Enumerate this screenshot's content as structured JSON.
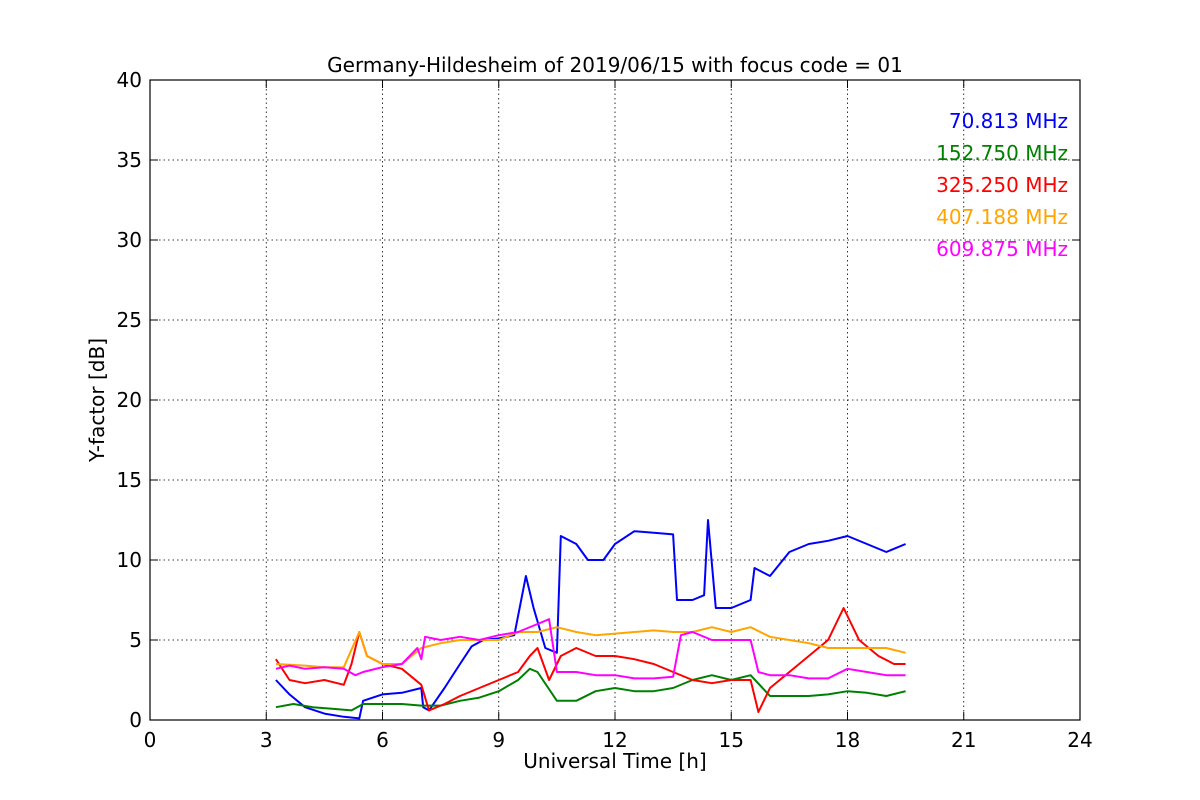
{
  "chart_data": {
    "type": "line",
    "title": "Germany-Hildesheim of 2019/06/15 with focus code = 01",
    "xlabel": "Universal Time [h]",
    "ylabel": "Y-factor [dB]",
    "xlim": [
      0,
      24
    ],
    "ylim": [
      0,
      40
    ],
    "x_ticks": [
      "0",
      "3",
      "6",
      "9",
      "12",
      "15",
      "18",
      "21",
      "24"
    ],
    "y_ticks": [
      "0",
      "5",
      "10",
      "15",
      "20",
      "25",
      "30",
      "35",
      "40"
    ],
    "grid": true,
    "legend_position": "top-right",
    "series": [
      {
        "name": "70.813 MHz",
        "color": "#0000ff",
        "points": [
          [
            3.25,
            2.5
          ],
          [
            3.6,
            1.6
          ],
          [
            4.0,
            0.8
          ],
          [
            4.5,
            0.4
          ],
          [
            5.0,
            0.2
          ],
          [
            5.4,
            0.1
          ],
          [
            5.5,
            1.2
          ],
          [
            6.0,
            1.6
          ],
          [
            6.5,
            1.7
          ],
          [
            7.0,
            2.0
          ],
          [
            7.05,
            0.8
          ],
          [
            7.2,
            0.6
          ],
          [
            7.6,
            2.0
          ],
          [
            8.0,
            3.5
          ],
          [
            8.3,
            4.6
          ],
          [
            8.6,
            5.0
          ],
          [
            9.0,
            5.1
          ],
          [
            9.4,
            5.3
          ],
          [
            9.7,
            9.0
          ],
          [
            9.9,
            7.0
          ],
          [
            10.2,
            4.5
          ],
          [
            10.5,
            4.2
          ],
          [
            10.6,
            11.5
          ],
          [
            11.0,
            11.0
          ],
          [
            11.3,
            10.0
          ],
          [
            11.7,
            10.0
          ],
          [
            12.0,
            11.0
          ],
          [
            12.5,
            11.8
          ],
          [
            13.0,
            11.7
          ],
          [
            13.5,
            11.6
          ],
          [
            13.6,
            7.5
          ],
          [
            14.0,
            7.5
          ],
          [
            14.3,
            7.8
          ],
          [
            14.4,
            12.5
          ],
          [
            14.6,
            7.0
          ],
          [
            15.0,
            7.0
          ],
          [
            15.5,
            7.5
          ],
          [
            15.6,
            9.5
          ],
          [
            16.0,
            9.0
          ],
          [
            16.5,
            10.5
          ],
          [
            17.0,
            11.0
          ],
          [
            17.5,
            11.2
          ],
          [
            18.0,
            11.5
          ],
          [
            18.5,
            11.0
          ],
          [
            19.0,
            10.5
          ],
          [
            19.5,
            11.0
          ]
        ]
      },
      {
        "name": "152.750 MHz",
        "color": "#008000",
        "points": [
          [
            3.25,
            0.8
          ],
          [
            3.7,
            1.0
          ],
          [
            4.2,
            0.8
          ],
          [
            4.7,
            0.7
          ],
          [
            5.2,
            0.6
          ],
          [
            5.5,
            1.0
          ],
          [
            6.0,
            1.0
          ],
          [
            6.5,
            1.0
          ],
          [
            7.0,
            0.9
          ],
          [
            7.5,
            0.9
          ],
          [
            8.0,
            1.2
          ],
          [
            8.5,
            1.4
          ],
          [
            9.0,
            1.8
          ],
          [
            9.5,
            2.5
          ],
          [
            9.8,
            3.2
          ],
          [
            10.0,
            3.0
          ],
          [
            10.5,
            1.2
          ],
          [
            11.0,
            1.2
          ],
          [
            11.5,
            1.8
          ],
          [
            12.0,
            2.0
          ],
          [
            12.5,
            1.8
          ],
          [
            13.0,
            1.8
          ],
          [
            13.5,
            2.0
          ],
          [
            14.0,
            2.5
          ],
          [
            14.5,
            2.8
          ],
          [
            15.0,
            2.5
          ],
          [
            15.5,
            2.8
          ],
          [
            16.0,
            1.5
          ],
          [
            16.5,
            1.5
          ],
          [
            17.0,
            1.5
          ],
          [
            17.5,
            1.6
          ],
          [
            18.0,
            1.8
          ],
          [
            18.5,
            1.7
          ],
          [
            19.0,
            1.5
          ],
          [
            19.5,
            1.8
          ]
        ]
      },
      {
        "name": "325.250 MHz",
        "color": "#ff0000",
        "points": [
          [
            3.25,
            3.8
          ],
          [
            3.6,
            2.5
          ],
          [
            4.0,
            2.3
          ],
          [
            4.5,
            2.5
          ],
          [
            5.0,
            2.2
          ],
          [
            5.2,
            3.5
          ],
          [
            5.4,
            5.5
          ],
          [
            5.6,
            4.0
          ],
          [
            6.0,
            3.5
          ],
          [
            6.5,
            3.2
          ],
          [
            7.0,
            2.2
          ],
          [
            7.2,
            0.6
          ],
          [
            7.6,
            1.0
          ],
          [
            8.0,
            1.5
          ],
          [
            8.5,
            2.0
          ],
          [
            9.0,
            2.5
          ],
          [
            9.5,
            3.0
          ],
          [
            9.8,
            4.0
          ],
          [
            10.0,
            4.5
          ],
          [
            10.3,
            2.5
          ],
          [
            10.6,
            4.0
          ],
          [
            11.0,
            4.5
          ],
          [
            11.5,
            4.0
          ],
          [
            12.0,
            4.0
          ],
          [
            12.5,
            3.8
          ],
          [
            13.0,
            3.5
          ],
          [
            13.5,
            3.0
          ],
          [
            14.0,
            2.5
          ],
          [
            14.5,
            2.3
          ],
          [
            15.0,
            2.5
          ],
          [
            15.5,
            2.5
          ],
          [
            15.7,
            0.5
          ],
          [
            16.0,
            2.0
          ],
          [
            16.5,
            3.0
          ],
          [
            17.0,
            4.0
          ],
          [
            17.5,
            5.0
          ],
          [
            17.9,
            7.0
          ],
          [
            18.3,
            5.0
          ],
          [
            18.8,
            4.0
          ],
          [
            19.2,
            3.5
          ],
          [
            19.5,
            3.5
          ]
        ]
      },
      {
        "name": "407.188 MHz",
        "color": "#ffa500",
        "points": [
          [
            3.25,
            3.5
          ],
          [
            4.0,
            3.4
          ],
          [
            4.5,
            3.3
          ],
          [
            5.0,
            3.3
          ],
          [
            5.4,
            5.5
          ],
          [
            5.6,
            4.0
          ],
          [
            6.0,
            3.5
          ],
          [
            6.5,
            3.5
          ],
          [
            7.0,
            4.5
          ],
          [
            7.5,
            4.8
          ],
          [
            8.0,
            5.0
          ],
          [
            8.5,
            5.0
          ],
          [
            9.0,
            5.0
          ],
          [
            9.5,
            5.5
          ],
          [
            10.0,
            5.5
          ],
          [
            10.5,
            5.8
          ],
          [
            11.0,
            5.5
          ],
          [
            11.5,
            5.3
          ],
          [
            12.0,
            5.4
          ],
          [
            12.5,
            5.5
          ],
          [
            13.0,
            5.6
          ],
          [
            13.5,
            5.5
          ],
          [
            14.0,
            5.5
          ],
          [
            14.5,
            5.8
          ],
          [
            15.0,
            5.5
          ],
          [
            15.5,
            5.8
          ],
          [
            16.0,
            5.2
          ],
          [
            16.5,
            5.0
          ],
          [
            17.0,
            4.8
          ],
          [
            17.5,
            4.5
          ],
          [
            18.0,
            4.5
          ],
          [
            18.5,
            4.5
          ],
          [
            19.0,
            4.5
          ],
          [
            19.5,
            4.2
          ]
        ]
      },
      {
        "name": "609.875 MHz",
        "color": "#ff00ff",
        "points": [
          [
            3.25,
            3.2
          ],
          [
            3.6,
            3.4
          ],
          [
            4.0,
            3.2
          ],
          [
            4.5,
            3.3
          ],
          [
            5.0,
            3.2
          ],
          [
            5.3,
            2.8
          ],
          [
            5.5,
            3.0
          ],
          [
            6.0,
            3.3
          ],
          [
            6.5,
            3.5
          ],
          [
            6.9,
            4.5
          ],
          [
            7.0,
            3.8
          ],
          [
            7.1,
            5.2
          ],
          [
            7.5,
            5.0
          ],
          [
            8.0,
            5.2
          ],
          [
            8.5,
            5.0
          ],
          [
            9.0,
            5.3
          ],
          [
            9.5,
            5.5
          ],
          [
            10.0,
            6.0
          ],
          [
            10.3,
            6.3
          ],
          [
            10.5,
            3.0
          ],
          [
            11.0,
            3.0
          ],
          [
            11.5,
            2.8
          ],
          [
            12.0,
            2.8
          ],
          [
            12.5,
            2.6
          ],
          [
            13.0,
            2.6
          ],
          [
            13.5,
            2.7
          ],
          [
            13.7,
            5.3
          ],
          [
            14.0,
            5.5
          ],
          [
            14.5,
            5.0
          ],
          [
            15.0,
            5.0
          ],
          [
            15.5,
            5.0
          ],
          [
            15.7,
            3.0
          ],
          [
            16.0,
            2.8
          ],
          [
            16.5,
            2.8
          ],
          [
            17.0,
            2.6
          ],
          [
            17.5,
            2.6
          ],
          [
            18.0,
            3.2
          ],
          [
            18.5,
            3.0
          ],
          [
            19.0,
            2.8
          ],
          [
            19.5,
            2.8
          ]
        ]
      }
    ]
  }
}
